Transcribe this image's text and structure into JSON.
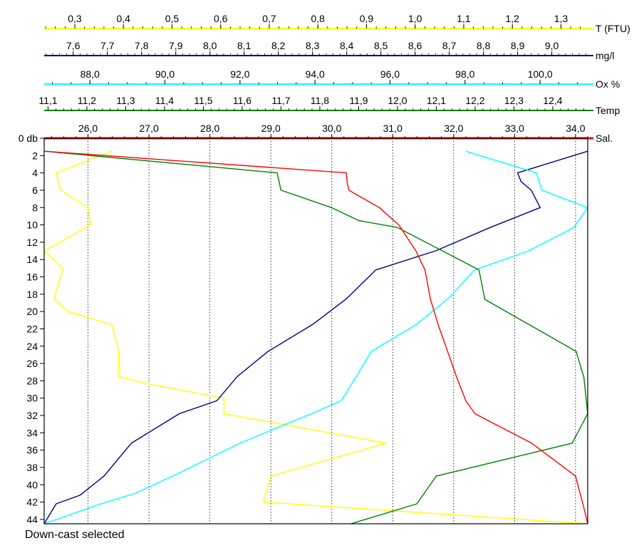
{
  "chart_data": {
    "type": "line",
    "title": "",
    "y_axis": {
      "label": "db",
      "min": 0,
      "max": 44.5,
      "inverted": true,
      "ticks": [
        0,
        2,
        4,
        6,
        8,
        10,
        12,
        14,
        16,
        18,
        20,
        22,
        24,
        26,
        28,
        30,
        32,
        34,
        36,
        38,
        40,
        42,
        44
      ],
      "tick_labels": [
        "0 db",
        "2",
        "4",
        "6",
        "8",
        "10",
        "12",
        "14",
        "16",
        "18",
        "20",
        "22",
        "24",
        "26",
        "28",
        "30",
        "32",
        "34",
        "36",
        "38",
        "40",
        "42",
        "44"
      ]
    },
    "gridlines": "vertical dotted at Sal. axis ticks",
    "x_axes": [
      {
        "name": "T (FTU)",
        "color": "#ffff00",
        "min": 0.237,
        "max": 1.355,
        "ticks": [
          0.3,
          0.4,
          0.5,
          0.6,
          0.7,
          0.8,
          0.9,
          1.0,
          1.1,
          1.2,
          1.3
        ],
        "tick_labels": [
          "0,3",
          "0,4",
          "0,5",
          "0,6",
          "0,7",
          "0,8",
          "0,9",
          "1,0",
          "1,1",
          "1,2",
          "1,3"
        ],
        "minor_step": 0.02
      },
      {
        "name": "mg/l",
        "color": "#000080",
        "min": 7.515,
        "max": 9.105,
        "ticks": [
          7.6,
          7.7,
          7.8,
          7.9,
          8.0,
          8.1,
          8.2,
          8.3,
          8.4,
          8.5,
          8.6,
          8.7,
          8.8,
          8.9,
          9.0
        ],
        "tick_labels": [
          "7,6",
          "7,7",
          "7,8",
          "7,9",
          "8,0",
          "8,1",
          "8,2",
          "8,3",
          "8,4",
          "8,5",
          "8,6",
          "8,7",
          "8,8",
          "8,9",
          "9,0"
        ],
        "minor_step": 0.02
      },
      {
        "name": "Ox %",
        "color": "#00ffff",
        "min": 86.78,
        "max": 101.27,
        "ticks": [
          88.0,
          90.0,
          92.0,
          94.0,
          96.0,
          98.0,
          100.0
        ],
        "tick_labels": [
          "88,0",
          "90,0",
          "92,0",
          "94,0",
          "96,0",
          "98,0",
          "100,0"
        ],
        "minor_step": 0.5
      },
      {
        "name": "Temp",
        "color": "#008000",
        "min": 11.09,
        "max": 12.49,
        "ticks": [
          11.1,
          11.2,
          11.3,
          11.4,
          11.5,
          11.6,
          11.7,
          11.8,
          11.9,
          12.0,
          12.1,
          12.2,
          12.3,
          12.4
        ],
        "tick_labels": [
          "11,1",
          "11,2",
          "11,3",
          "11,4",
          "11,5",
          "11,6",
          "11,7",
          "11,8",
          "11,9",
          "12,0",
          "12,1",
          "12,2",
          "12,3",
          "12,4"
        ],
        "minor_step": 0.02
      },
      {
        "name": "Sal.",
        "color": "#ff0000",
        "min": 25.28,
        "max": 34.2,
        "ticks": [
          26.0,
          27.0,
          28.0,
          29.0,
          30.0,
          31.0,
          32.0,
          33.0,
          34.0
        ],
        "tick_labels": [
          "26,0",
          "27,0",
          "28,0",
          "29,0",
          "30,0",
          "31,0",
          "32,0",
          "33,0",
          "34,0"
        ],
        "minor_step": 0.2
      }
    ],
    "series": [
      {
        "name": "T (FTU)",
        "color": "#ffff00",
        "points": [
          [
            0.376,
            1.5
          ],
          [
            0.262,
            4
          ],
          [
            0.271,
            6
          ],
          [
            0.327,
            8
          ],
          [
            0.333,
            10
          ],
          [
            0.237,
            13
          ],
          [
            0.276,
            15
          ],
          [
            0.257,
            18.5
          ],
          [
            0.285,
            20
          ],
          [
            0.376,
            21.5
          ],
          [
            0.39,
            24.5
          ],
          [
            0.39,
            27.5
          ],
          [
            0.464,
            28.5
          ],
          [
            0.607,
            30
          ],
          [
            0.607,
            31.8
          ],
          [
            0.941,
            35.2
          ],
          [
            0.703,
            39
          ],
          [
            0.688,
            42
          ],
          [
            1.355,
            44.5
          ]
        ]
      },
      {
        "name": "mg/l",
        "color": "#000080",
        "points": [
          [
            9.105,
            1.5
          ],
          [
            8.9,
            4
          ],
          [
            8.91,
            5
          ],
          [
            8.94,
            6
          ],
          [
            8.966,
            8
          ],
          [
            8.82,
            10.3
          ],
          [
            8.66,
            13
          ],
          [
            8.485,
            15.2
          ],
          [
            8.4,
            18.5
          ],
          [
            8.3,
            21.5
          ],
          [
            8.17,
            24.6
          ],
          [
            8.08,
            27.5
          ],
          [
            8.02,
            30.3
          ],
          [
            7.91,
            31.8
          ],
          [
            7.77,
            35.2
          ],
          [
            7.69,
            39
          ],
          [
            7.62,
            41.2
          ],
          [
            7.55,
            42.2
          ],
          [
            7.515,
            44.5
          ]
        ]
      },
      {
        "name": "Ox %",
        "color": "#00ffff",
        "points": [
          [
            98.02,
            1.5
          ],
          [
            99.9,
            4
          ],
          [
            100.05,
            6
          ],
          [
            101.27,
            8
          ],
          [
            100.9,
            10.3
          ],
          [
            99.7,
            13
          ],
          [
            98.25,
            15.2
          ],
          [
            97.6,
            18.3
          ],
          [
            96.7,
            21.5
          ],
          [
            95.5,
            24.6
          ],
          [
            95.1,
            27.5
          ],
          [
            94.7,
            30.3
          ],
          [
            93.9,
            31.8
          ],
          [
            92.0,
            35.2
          ],
          [
            90.3,
            38.8
          ],
          [
            89.2,
            41
          ],
          [
            88.3,
            42.2
          ],
          [
            86.78,
            44.5
          ]
        ]
      },
      {
        "name": "Temp",
        "color": "#008000",
        "points": [
          [
            11.09,
            1.5
          ],
          [
            11.69,
            4
          ],
          [
            11.7,
            6
          ],
          [
            11.83,
            8
          ],
          [
            11.9,
            9.5
          ],
          [
            12.0,
            10.3
          ],
          [
            12.21,
            15.2
          ],
          [
            12.225,
            18.6
          ],
          [
            12.46,
            24.6
          ],
          [
            12.48,
            27.6
          ],
          [
            12.49,
            31.8
          ],
          [
            12.45,
            35.2
          ],
          [
            12.1,
            39
          ],
          [
            12.05,
            42.2
          ],
          [
            11.88,
            44.5
          ]
        ]
      },
      {
        "name": "Sal.",
        "color": "#ff0000",
        "points": [
          [
            25.28,
            1.5
          ],
          [
            30.24,
            4
          ],
          [
            30.25,
            5
          ],
          [
            30.28,
            6
          ],
          [
            30.78,
            8
          ],
          [
            31.1,
            10
          ],
          [
            31.38,
            13
          ],
          [
            31.53,
            15.2
          ],
          [
            31.62,
            18.6
          ],
          [
            31.75,
            21.6
          ],
          [
            31.9,
            24.6
          ],
          [
            32.05,
            27.6
          ],
          [
            32.2,
            30.3
          ],
          [
            32.35,
            31.8
          ],
          [
            33.28,
            35.2
          ],
          [
            34.0,
            39
          ],
          [
            34.12,
            42.2
          ],
          [
            34.2,
            44.5
          ]
        ]
      }
    ],
    "annotation": "Down-cast selected"
  }
}
